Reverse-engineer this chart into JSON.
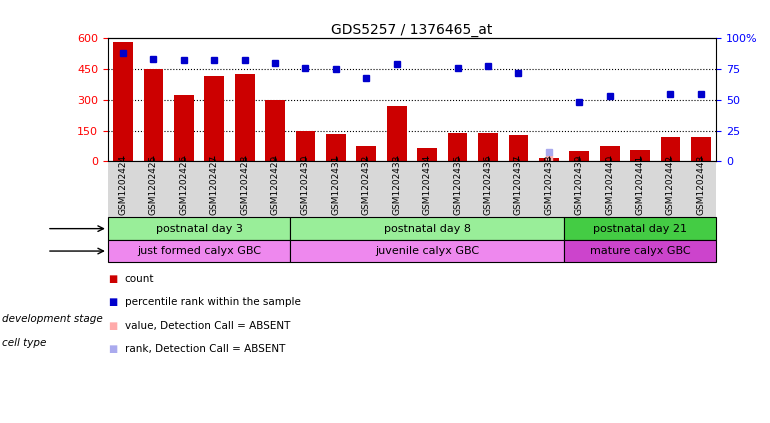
{
  "title": "GDS5257 / 1376465_at",
  "samples": [
    "GSM1202424",
    "GSM1202425",
    "GSM1202426",
    "GSM1202427",
    "GSM1202428",
    "GSM1202429",
    "GSM1202430",
    "GSM1202431",
    "GSM1202432",
    "GSM1202433",
    "GSM1202434",
    "GSM1202435",
    "GSM1202436",
    "GSM1202437",
    "GSM1202438",
    "GSM1202439",
    "GSM1202440",
    "GSM1202441",
    "GSM1202442",
    "GSM1202443"
  ],
  "counts": [
    580,
    450,
    325,
    415,
    425,
    300,
    150,
    135,
    75,
    270,
    65,
    140,
    140,
    130,
    15,
    50,
    75,
    55,
    120,
    120
  ],
  "percentile_ranks": [
    88,
    83,
    82,
    82,
    82,
    80,
    76,
    75,
    68,
    79,
    null,
    76,
    77,
    72,
    null,
    48,
    53,
    null,
    55,
    55
  ],
  "absent_value": [
    null,
    null,
    null,
    null,
    null,
    null,
    null,
    null,
    null,
    null,
    null,
    null,
    null,
    null,
    15,
    null,
    null,
    null,
    null,
    null
  ],
  "absent_rank_pct": [
    null,
    null,
    null,
    null,
    null,
    null,
    null,
    null,
    null,
    null,
    null,
    null,
    null,
    null,
    8,
    null,
    null,
    null,
    null,
    null
  ],
  "groups": {
    "postnatal day 3": [
      0,
      5
    ],
    "postnatal day 8": [
      6,
      14
    ],
    "postnatal day 21": [
      15,
      19
    ]
  },
  "cell_types": {
    "just formed calyx GBC": [
      0,
      5
    ],
    "juvenile calyx GBC": [
      6,
      14
    ],
    "mature calyx GBC": [
      15,
      19
    ]
  },
  "group_colors": [
    "#99ee99",
    "#99ee99",
    "#44cc44"
  ],
  "cell_colors": [
    "#ee88ee",
    "#ee88ee",
    "#cc44cc"
  ],
  "bar_color": "#cc0000",
  "dot_color": "#0000cc",
  "absent_val_color": "#ffaaaa",
  "absent_rank_color": "#aaaaee",
  "ylim_left": [
    0,
    600
  ],
  "yticks_left": [
    0,
    150,
    300,
    450,
    600
  ],
  "ytick_labels_left": [
    "0",
    "150",
    "300",
    "450",
    "600"
  ],
  "yticks_right": [
    0,
    25,
    50,
    75,
    100
  ],
  "ytick_labels_right": [
    "0",
    "25",
    "50",
    "75",
    "100%"
  ],
  "legend_items": [
    {
      "color": "#cc0000",
      "label": "count"
    },
    {
      "color": "#0000cc",
      "label": "percentile rank within the sample"
    },
    {
      "color": "#ffaaaa",
      "label": "value, Detection Call = ABSENT"
    },
    {
      "color": "#aaaaee",
      "label": "rank, Detection Call = ABSENT"
    }
  ]
}
